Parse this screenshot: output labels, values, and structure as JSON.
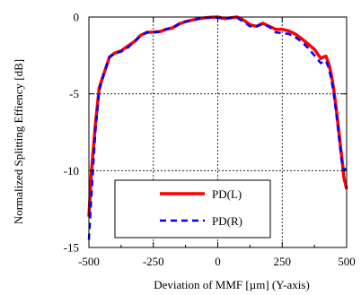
{
  "chart_data": {
    "type": "line",
    "xlabel": "Deviation of MMF [µm] (Y-axis)",
    "ylabel": "Normalized Splitting Effiency [dB]",
    "xlim": [
      -500,
      500
    ],
    "ylim": [
      -15,
      0
    ],
    "xticks": [
      -500,
      -250,
      0,
      250,
      500
    ],
    "yticks": [
      0,
      -5,
      -10,
      -15
    ],
    "x_tick_labels": [
      "-500",
      "-250",
      "0",
      "250",
      "500"
    ],
    "y_tick_labels": [
      "0",
      "-5",
      "-10",
      "-15"
    ],
    "grid": true,
    "legend_position": "lower-center",
    "series": [
      {
        "name": "PD(L)",
        "color": "#ff0000",
        "style": "solid",
        "x": [
          -500,
          -490,
          -475,
          -460,
          -440,
          -420,
          -400,
          -375,
          -350,
          -320,
          -300,
          -275,
          -250,
          -225,
          -200,
          -175,
          -150,
          -125,
          -100,
          -75,
          -50,
          -25,
          0,
          25,
          50,
          75,
          100,
          125,
          150,
          175,
          200,
          225,
          250,
          275,
          300,
          325,
          350,
          375,
          400,
          410,
          420,
          430,
          440,
          450,
          460,
          470,
          480,
          490,
          500
        ],
        "y": [
          -13.0,
          -10.0,
          -7.0,
          -4.6,
          -3.6,
          -2.6,
          -2.35,
          -2.2,
          -1.9,
          -1.55,
          -1.2,
          -1.0,
          -0.98,
          -0.95,
          -0.8,
          -0.7,
          -0.45,
          -0.3,
          -0.2,
          -0.1,
          -0.05,
          -0.02,
          0.0,
          -0.1,
          -0.05,
          0.0,
          -0.2,
          -0.5,
          -0.6,
          -0.4,
          -0.6,
          -0.8,
          -0.8,
          -0.9,
          -1.1,
          -1.4,
          -1.75,
          -2.1,
          -2.7,
          -2.6,
          -2.55,
          -3.0,
          -3.7,
          -4.7,
          -6.0,
          -7.5,
          -9.0,
          -10.5,
          -11.2
        ]
      },
      {
        "name": "PD(R)",
        "color": "#0000ff",
        "style": "dashed",
        "x": [
          -500,
          -490,
          -475,
          -460,
          -440,
          -420,
          -400,
          -375,
          -350,
          -320,
          -300,
          -275,
          -250,
          -225,
          -200,
          -175,
          -150,
          -125,
          -100,
          -75,
          -50,
          -25,
          0,
          25,
          50,
          75,
          100,
          125,
          150,
          175,
          200,
          225,
          250,
          275,
          300,
          325,
          350,
          375,
          400,
          410,
          420,
          430,
          440,
          450,
          460,
          470,
          480,
          490,
          500
        ],
        "y": [
          -14.5,
          -11.5,
          -7.5,
          -4.8,
          -3.6,
          -2.6,
          -2.35,
          -2.25,
          -2.0,
          -1.55,
          -1.2,
          -1.0,
          -1.0,
          -0.95,
          -0.8,
          -0.7,
          -0.45,
          -0.3,
          -0.25,
          -0.12,
          -0.05,
          -0.02,
          -0.05,
          -0.1,
          -0.05,
          -0.05,
          -0.3,
          -0.6,
          -0.6,
          -0.45,
          -0.65,
          -1.0,
          -1.05,
          -1.1,
          -1.3,
          -1.6,
          -2.0,
          -2.5,
          -3.0,
          -2.9,
          -2.85,
          -3.3,
          -4.0,
          -5.0,
          -6.3,
          -7.8,
          -9.3,
          -10.0,
          -9.8
        ]
      }
    ]
  }
}
